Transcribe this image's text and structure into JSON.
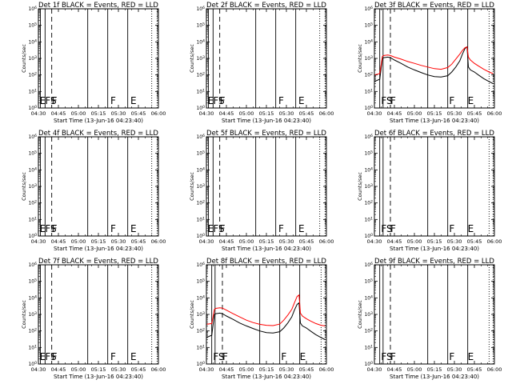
{
  "common": {
    "ylabel": "Counts/sec",
    "xlabel": "Start Time (13-Jun-16 04:23:40)",
    "x_tick_labels": [
      "04:30",
      "04:45",
      "05:00",
      "05:15",
      "05:30",
      "05:45",
      "06:00"
    ],
    "y_tick_labels": [
      "10^0",
      "10^1",
      "10^2",
      "10^3",
      "10^4",
      "10^5",
      "10^6"
    ],
    "colors": {
      "events": "#000000",
      "lld": "#ff0000"
    }
  },
  "chart_data": [
    {
      "type": "line",
      "title": "Det 1f BLACK = Events, RED = LLD",
      "x_unit": "minutes after 04:30",
      "ylim": [
        1,
        1000000
      ],
      "yscale": "log",
      "xlim": [
        0,
        90
      ],
      "attenuator_lines": {
        "solid": [
          1.5,
          5,
          37,
          52,
          67
        ],
        "dashed": [
          10
        ],
        "dotted": [
          85,
          89
        ]
      },
      "markers": [
        {
          "text": "E",
          "x": 1
        },
        {
          "text": "FS",
          "x": 5
        },
        {
          "text": "F",
          "x": 10
        },
        {
          "text": "F",
          "x": 54
        },
        {
          "text": "E",
          "x": 69
        }
      ],
      "series": []
    },
    {
      "type": "line",
      "title": "Det 2f BLACK = Events, RED = LLD",
      "x_unit": "minutes after 04:30",
      "ylim": [
        1,
        1000000
      ],
      "yscale": "log",
      "xlim": [
        0,
        90
      ],
      "attenuator_lines": {
        "solid": [
          1.5,
          5,
          37,
          52,
          67
        ],
        "dashed": [
          10
        ],
        "dotted": [
          85,
          89
        ]
      },
      "markers": [
        {
          "text": "E",
          "x": 1
        },
        {
          "text": "FS",
          "x": 5
        },
        {
          "text": "F",
          "x": 10
        },
        {
          "text": "F",
          "x": 54
        },
        {
          "text": "E",
          "x": 69
        }
      ],
      "series": []
    },
    {
      "type": "line",
      "title": "Det 3f BLACK = Events, RED = LLD",
      "x_unit": "minutes after 04:30",
      "ylim": [
        1,
        1000000
      ],
      "yscale": "log",
      "xlim": [
        0,
        90
      ],
      "attenuator_lines": {
        "solid": [
          4,
          6.5,
          40,
          55,
          70
        ],
        "dashed": [
          12
        ],
        "dotted": [
          86,
          89
        ]
      },
      "markers": [
        {
          "text": "FS",
          "x": 5
        },
        {
          "text": "F",
          "x": 12
        },
        {
          "text": "F",
          "x": 56
        },
        {
          "text": "E",
          "x": 70
        }
      ],
      "series": [
        {
          "name": "Events",
          "color": "#000000",
          "x": [
            0,
            4,
            6,
            7,
            10,
            12,
            15,
            20,
            25,
            30,
            35,
            40,
            45,
            50,
            55,
            58,
            61,
            64,
            66,
            68,
            69.5,
            70.5,
            72,
            75,
            78,
            82,
            86,
            89
          ],
          "y": [
            40,
            55,
            1000,
            1100,
            1200,
            1100,
            800,
            500,
            300,
            200,
            140,
            100,
            80,
            75,
            90,
            150,
            300,
            700,
            1800,
            4000,
            5000,
            300,
            200,
            150,
            100,
            60,
            40,
            30
          ]
        },
        {
          "name": "LLD",
          "color": "#ff0000",
          "x": [
            0,
            4,
            6,
            7,
            10,
            12,
            15,
            20,
            25,
            30,
            35,
            40,
            45,
            50,
            55,
            58,
            61,
            64,
            66,
            68,
            69.5,
            70.5,
            72,
            75,
            78,
            82,
            86,
            89
          ],
          "y": [
            100,
            120,
            1300,
            1500,
            1600,
            1500,
            1200,
            900,
            650,
            500,
            380,
            300,
            240,
            220,
            280,
            450,
            900,
            1800,
            3000,
            4500,
            5000,
            1200,
            800,
            500,
            350,
            220,
            150,
            120
          ]
        }
      ]
    },
    {
      "type": "line",
      "title": "Det 4f BLACK = Events, RED = LLD",
      "x_unit": "minutes after 04:30",
      "ylim": [
        1,
        1000000
      ],
      "yscale": "log",
      "xlim": [
        0,
        90
      ],
      "attenuator_lines": {
        "solid": [
          1.5,
          5,
          37,
          52,
          67
        ],
        "dashed": [
          10
        ],
        "dotted": [
          85,
          89
        ]
      },
      "markers": [
        {
          "text": "E",
          "x": 1
        },
        {
          "text": "FS",
          "x": 5
        },
        {
          "text": "F",
          "x": 10
        },
        {
          "text": "F",
          "x": 54
        },
        {
          "text": "E",
          "x": 69
        }
      ],
      "series": []
    },
    {
      "type": "line",
      "title": "Det 5f BLACK = Events, RED = LLD",
      "x_unit": "minutes after 04:30",
      "ylim": [
        1,
        1000000
      ],
      "yscale": "log",
      "xlim": [
        0,
        90
      ],
      "attenuator_lines": {
        "solid": [
          1.5,
          5,
          37,
          52,
          67
        ],
        "dashed": [
          10
        ],
        "dotted": [
          85,
          89
        ]
      },
      "markers": [
        {
          "text": "E",
          "x": 1
        },
        {
          "text": "FS",
          "x": 5
        },
        {
          "text": "F",
          "x": 10
        },
        {
          "text": "F",
          "x": 54
        },
        {
          "text": "E",
          "x": 69
        }
      ],
      "series": []
    },
    {
      "type": "line",
      "title": "Det 6f BLACK = Events, RED = LLD",
      "x_unit": "minutes after 04:30",
      "ylim": [
        1,
        1000000
      ],
      "yscale": "log",
      "xlim": [
        0,
        90
      ],
      "attenuator_lines": {
        "solid": [
          4,
          6.5,
          40,
          55,
          70
        ],
        "dashed": [
          12
        ],
        "dotted": [
          86,
          89
        ]
      },
      "markers": [
        {
          "text": "FS",
          "x": 5
        },
        {
          "text": "F",
          "x": 12
        },
        {
          "text": "F",
          "x": 56
        },
        {
          "text": "E",
          "x": 70
        }
      ],
      "series": []
    },
    {
      "type": "line",
      "title": "Det 7f BLACK = Events, RED = LLD",
      "x_unit": "minutes after 04:30",
      "ylim": [
        1,
        1000000
      ],
      "yscale": "log",
      "xlim": [
        0,
        90
      ],
      "attenuator_lines": {
        "solid": [
          1.5,
          5,
          37,
          52,
          67
        ],
        "dashed": [
          10
        ],
        "dotted": [
          85,
          89
        ]
      },
      "markers": [
        {
          "text": "E",
          "x": 1
        },
        {
          "text": "FS",
          "x": 5
        },
        {
          "text": "F",
          "x": 10
        },
        {
          "text": "F",
          "x": 54
        },
        {
          "text": "E",
          "x": 69
        }
      ],
      "series": []
    },
    {
      "type": "line",
      "title": "Det 8f BLACK = Events, RED = LLD",
      "x_unit": "minutes after 04:30",
      "ylim": [
        1,
        1000000
      ],
      "yscale": "log",
      "xlim": [
        0,
        90
      ],
      "attenuator_lines": {
        "solid": [
          4,
          6.5,
          40,
          55,
          70
        ],
        "dashed": [
          12
        ],
        "dotted": [
          86,
          89
        ]
      },
      "markers": [
        {
          "text": "FS",
          "x": 5
        },
        {
          "text": "F",
          "x": 12
        },
        {
          "text": "F",
          "x": 56
        },
        {
          "text": "E",
          "x": 70
        }
      ],
      "series": [
        {
          "name": "Events",
          "color": "#000000",
          "x": [
            0,
            4,
            6,
            7,
            10,
            12,
            15,
            20,
            25,
            30,
            35,
            40,
            45,
            50,
            55,
            58,
            61,
            64,
            66,
            68,
            69.5,
            70.5,
            72,
            75,
            78,
            82,
            86,
            89
          ],
          "y": [
            40,
            55,
            1000,
            1100,
            1200,
            1100,
            800,
            500,
            300,
            200,
            140,
            100,
            80,
            75,
            90,
            150,
            300,
            700,
            1800,
            4000,
            5000,
            300,
            200,
            150,
            100,
            60,
            40,
            30
          ]
        },
        {
          "name": "LLD",
          "color": "#ff0000",
          "x": [
            0,
            4,
            6,
            7,
            10,
            12,
            15,
            20,
            25,
            30,
            35,
            40,
            45,
            50,
            55,
            58,
            61,
            64,
            66,
            68,
            69.5,
            70.5,
            72,
            75,
            78,
            82,
            86,
            89
          ],
          "y": [
            250,
            280,
            2000,
            2300,
            2500,
            2400,
            1800,
            1100,
            700,
            450,
            320,
            250,
            220,
            210,
            260,
            450,
            900,
            2000,
            5000,
            12000,
            15000,
            1200,
            800,
            550,
            400,
            280,
            220,
            200
          ]
        }
      ]
    },
    {
      "type": "line",
      "title": "Det 9f BLACK = Events, RED = LLD",
      "x_unit": "minutes after 04:30",
      "ylim": [
        1,
        1000000
      ],
      "yscale": "log",
      "xlim": [
        0,
        90
      ],
      "attenuator_lines": {
        "solid": [
          4,
          6.5,
          40,
          55,
          70
        ],
        "dashed": [
          12
        ],
        "dotted": [
          86,
          89
        ]
      },
      "markers": [
        {
          "text": "FS",
          "x": 5
        },
        {
          "text": "F",
          "x": 12
        },
        {
          "text": "F",
          "x": 56
        },
        {
          "text": "E",
          "x": 70
        }
      ],
      "series": []
    }
  ]
}
